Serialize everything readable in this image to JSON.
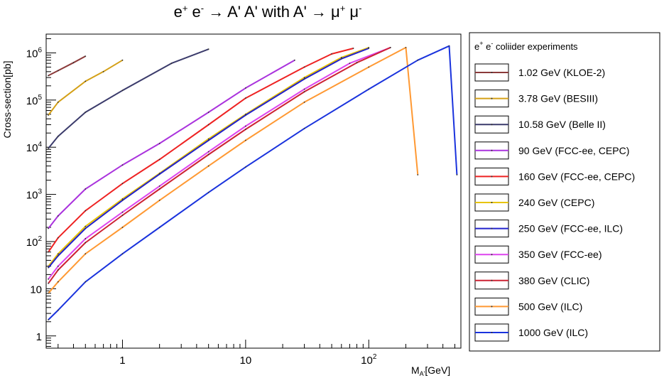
{
  "chart_data": {
    "type": "line",
    "title_parts": {
      "p1": "e",
      "sup1": "+",
      "p2": " e",
      "sup2": "-",
      "p3": " → A' A' with A' → μ",
      "sup3": "+",
      "p4": " μ",
      "sup4": "-"
    },
    "xlabel": {
      "main": "M",
      "sub": "A'",
      "unit": "[GeV]"
    },
    "ylabel": "Cross-section[pb]",
    "x_scale": "log",
    "y_scale": "log",
    "xlim": [
      0.24,
      560
    ],
    "ylim": [
      0.55,
      2500000
    ],
    "x_ticks": [
      {
        "value": 1,
        "label": "1"
      },
      {
        "value": 10,
        "label": "10"
      },
      {
        "value": 100,
        "label": "10",
        "sup": "2"
      }
    ],
    "y_ticks": [
      {
        "value": 1,
        "label": "1"
      },
      {
        "value": 10,
        "label": "10"
      },
      {
        "value": 100,
        "label": "10",
        "sup": "2"
      },
      {
        "value": 1000,
        "label": "10",
        "sup": "3"
      },
      {
        "value": 10000,
        "label": "10",
        "sup": "4"
      },
      {
        "value": 100000,
        "label": "10",
        "sup": "5"
      },
      {
        "value": 1000000,
        "label": "10",
        "sup": "6"
      }
    ],
    "grid": false,
    "legend": {
      "title_parts": {
        "p1": "e",
        "sup1": "+",
        "p2": " e",
        "sup2": "-",
        "p3": " coliider experiments"
      },
      "placement": "right"
    },
    "series": [
      {
        "name": "1.02 GeV (KLOE-2)",
        "color": "#8b3a3a",
        "points": [
          [
            0.25,
            330000
          ],
          [
            0.3,
            420000
          ],
          [
            0.4,
            620000
          ],
          [
            0.5,
            850000
          ]
        ]
      },
      {
        "name": "3.78 GeV (BESIII)",
        "color": "#d4a017",
        "points": [
          [
            0.25,
            48000
          ],
          [
            0.3,
            90000
          ],
          [
            0.5,
            250000
          ],
          [
            0.7,
            400000
          ],
          [
            1.0,
            700000
          ]
        ]
      },
      {
        "name": "10.58 GeV (Belle II)",
        "color": "#3b3b6b",
        "points": [
          [
            0.25,
            9500
          ],
          [
            0.3,
            17000
          ],
          [
            0.5,
            55000
          ],
          [
            1.0,
            160000
          ],
          [
            2.5,
            600000
          ],
          [
            5.0,
            1200000
          ]
        ]
      },
      {
        "name": "90 GeV (FCC-ee, CEPC)",
        "color": "#aa33dd",
        "points": [
          [
            0.25,
            190
          ],
          [
            0.3,
            350
          ],
          [
            0.5,
            1300
          ],
          [
            1.0,
            4200
          ],
          [
            2.0,
            12000
          ],
          [
            5.0,
            55000
          ],
          [
            10.0,
            180000
          ],
          [
            25.0,
            700000
          ]
        ]
      },
      {
        "name": "160 GeV (FCC-ee, CEPC)",
        "color": "#ee2222",
        "points": [
          [
            0.25,
            60
          ],
          [
            0.3,
            120
          ],
          [
            0.5,
            450
          ],
          [
            1.0,
            1700
          ],
          [
            2.0,
            5500
          ],
          [
            5.0,
            30000
          ],
          [
            10.0,
            110000
          ],
          [
            30.0,
            500000
          ],
          [
            50.0,
            950000
          ],
          [
            75.0,
            1250000
          ]
        ]
      },
      {
        "name": "240 GeV (CEPC)",
        "color": "#e8c400",
        "points": [
          [
            0.25,
            30
          ],
          [
            0.3,
            55
          ],
          [
            0.5,
            210
          ],
          [
            1.0,
            800
          ],
          [
            2.0,
            2800
          ],
          [
            5.0,
            15000
          ],
          [
            10.0,
            50000
          ],
          [
            30.0,
            300000
          ],
          [
            60.0,
            800000
          ],
          [
            100.0,
            1300000
          ]
        ]
      },
      {
        "name": "250 GeV (FCC-ee, ILC)",
        "color": "#2222cc",
        "points": [
          [
            0.25,
            28
          ],
          [
            0.3,
            50
          ],
          [
            0.5,
            190
          ],
          [
            1.0,
            750
          ],
          [
            2.0,
            2700
          ],
          [
            5.0,
            14000
          ],
          [
            10.0,
            48000
          ],
          [
            30.0,
            280000
          ],
          [
            60.0,
            750000
          ],
          [
            100.0,
            1250000
          ]
        ]
      },
      {
        "name": "350 GeV (FCC-ee)",
        "color": "#dd44ee",
        "points": [
          [
            0.25,
            16
          ],
          [
            0.3,
            30
          ],
          [
            0.5,
            115
          ],
          [
            1.0,
            420
          ],
          [
            2.0,
            1500
          ],
          [
            5.0,
            8000
          ],
          [
            10.0,
            28000
          ],
          [
            30.0,
            170000
          ],
          [
            70.0,
            600000
          ],
          [
            150.0,
            1300000
          ]
        ]
      },
      {
        "name": "380 GeV (CLIC)",
        "color": "#cc2233",
        "points": [
          [
            0.25,
            13
          ],
          [
            0.3,
            25
          ],
          [
            0.5,
            95
          ],
          [
            1.0,
            360
          ],
          [
            2.0,
            1300
          ],
          [
            5.0,
            7000
          ],
          [
            10.0,
            24000
          ],
          [
            30.0,
            150000
          ],
          [
            80.0,
            620000
          ],
          [
            150.0,
            1300000
          ]
        ]
      },
      {
        "name": "500 GeV (ILC)",
        "color": "#ff9933",
        "points": [
          [
            0.25,
            8
          ],
          [
            0.3,
            14
          ],
          [
            0.5,
            55
          ],
          [
            1.0,
            200
          ],
          [
            2.0,
            750
          ],
          [
            5.0,
            4000
          ],
          [
            10.0,
            14000
          ],
          [
            30.0,
            90000
          ],
          [
            100.0,
            500000
          ],
          [
            200.0,
            1300000
          ],
          [
            250.0,
            2600
          ]
        ]
      },
      {
        "name": "1000 GeV (ILC)",
        "color": "#1a33dd",
        "points": [
          [
            0.25,
            2.2
          ],
          [
            0.3,
            3.5
          ],
          [
            0.5,
            14
          ],
          [
            1.0,
            55
          ],
          [
            2.0,
            200
          ],
          [
            5.0,
            1100
          ],
          [
            10.0,
            3800
          ],
          [
            30.0,
            25000
          ],
          [
            100.0,
            170000
          ],
          [
            250.0,
            700000
          ],
          [
            450.0,
            1400000
          ],
          [
            520.0,
            2600
          ]
        ]
      }
    ]
  }
}
